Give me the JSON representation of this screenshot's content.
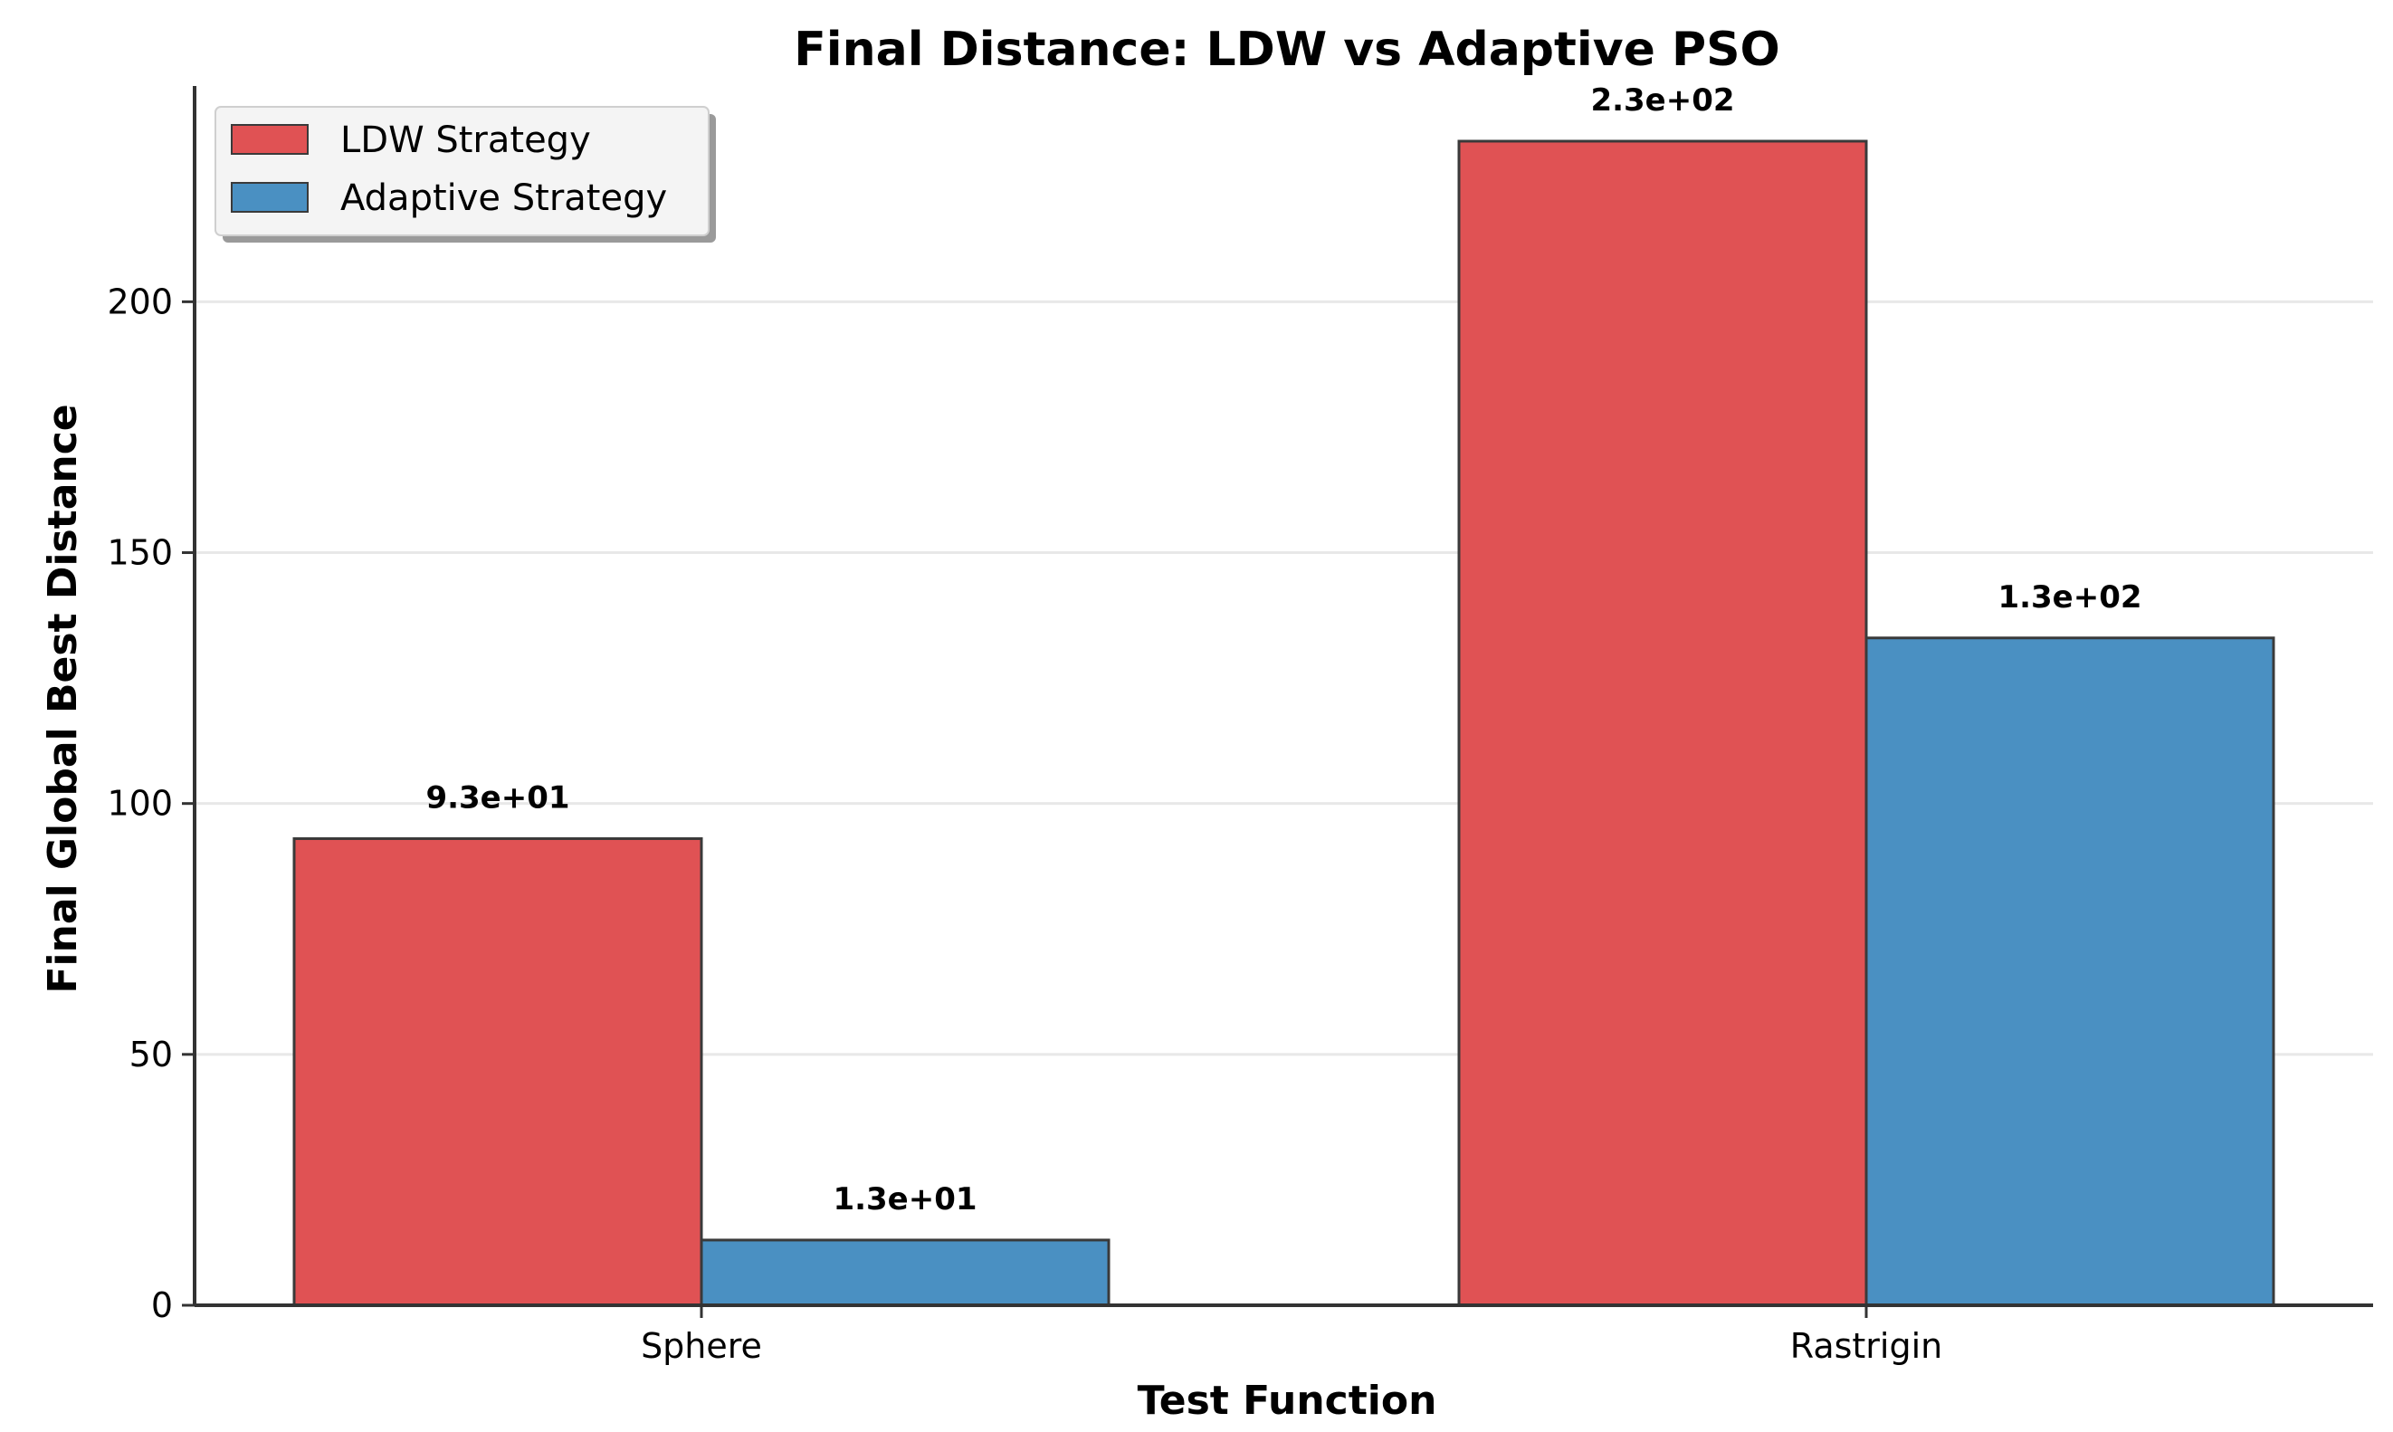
{
  "chart_data": {
    "type": "bar",
    "title": "Final Distance: LDW vs Adaptive PSO",
    "xlabel": "Test Function",
    "ylabel": "Final Global Best Distance",
    "categories": [
      "Sphere",
      "Rastrigin"
    ],
    "series": [
      {
        "name": "LDW Strategy",
        "color": "#e05254",
        "values": [
          93,
          232
        ],
        "labels": [
          "9.3e+01",
          "2.3e+02"
        ]
      },
      {
        "name": "Adaptive Strategy",
        "color": "#4a90c2",
        "values": [
          13,
          133
        ],
        "labels": [
          "1.3e+01",
          "1.3e+02"
        ]
      }
    ],
    "ylim": [
      0,
      243
    ],
    "yticks": [
      0,
      50,
      100,
      150,
      200
    ],
    "grid": true,
    "legend_position": "top-left"
  }
}
